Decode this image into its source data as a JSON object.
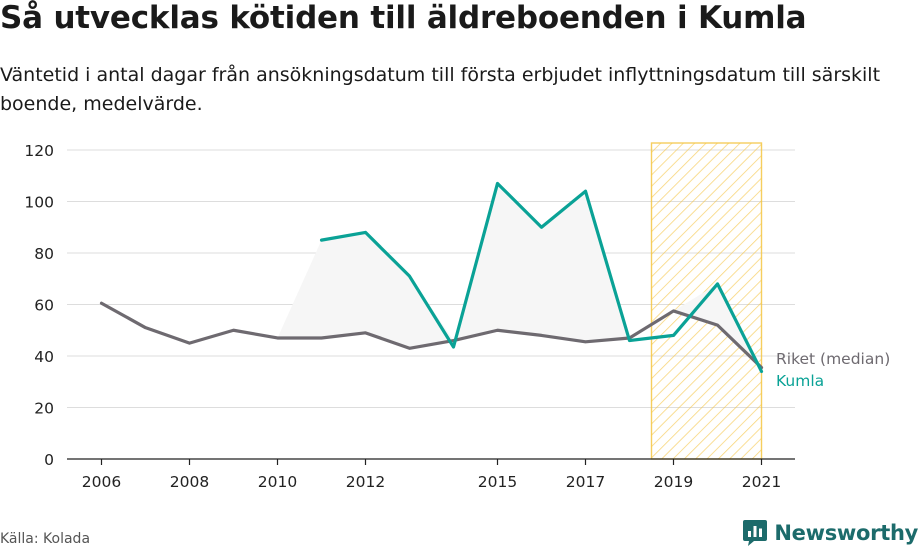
{
  "header": {
    "title": "Så utvecklas kötiden till äldreboenden i Kumla",
    "subtitle": "Väntetid i antal dagar från ansökningsdatum till första erbjudet inflyttningsdatum till särskilt boende, medelvärde."
  },
  "footer": {
    "source": "Källa: Kolada",
    "brand_name": "Newsworthy",
    "brand_icon": "bar-chart-speech-bubble-icon"
  },
  "colors": {
    "kumla": "#0aa296",
    "riket": "#6e6a70",
    "band_fill": "#f6f6f6",
    "highlight": "#f5c542",
    "grid": "#dddddd",
    "brand": "#1c6b6b"
  },
  "chart_data": {
    "type": "line",
    "title": "Så utvecklas kötiden till äldreboenden i Kumla",
    "subtitle": "Väntetid i antal dagar från ansökningsdatum till första erbjudet inflyttningsdatum till särskilt boende, medelvärde.",
    "xlabel": "",
    "ylabel": "",
    "xlim": [
      2006,
      2021
    ],
    "ylim": [
      0,
      120
    ],
    "y_ticks": [
      0,
      20,
      40,
      60,
      80,
      100,
      120
    ],
    "x_ticks": [
      2006,
      2008,
      2010,
      2012,
      2015,
      2017,
      2019,
      2021
    ],
    "grid": true,
    "legend": "direct labels at line ends (right)",
    "highlight_band": {
      "from": 2018.5,
      "to": 2021,
      "style": "hatched"
    },
    "x": [
      2006,
      2007,
      2008,
      2009,
      2010,
      2011,
      2012,
      2013,
      2014,
      2015,
      2016,
      2017,
      2018,
      2019,
      2020,
      2021
    ],
    "series": [
      {
        "name": "Riket (median)",
        "color": "#6e6a70",
        "values": [
          60.5,
          51,
          45,
          50,
          47,
          47,
          49,
          43,
          46,
          50,
          48,
          45.5,
          47,
          57.5,
          52,
          35.5
        ]
      },
      {
        "name": "Kumla",
        "color": "#0aa296",
        "values": [
          null,
          null,
          null,
          null,
          null,
          85,
          88,
          71,
          43.5,
          107,
          90,
          104,
          46,
          48,
          68,
          34
        ]
      }
    ]
  }
}
